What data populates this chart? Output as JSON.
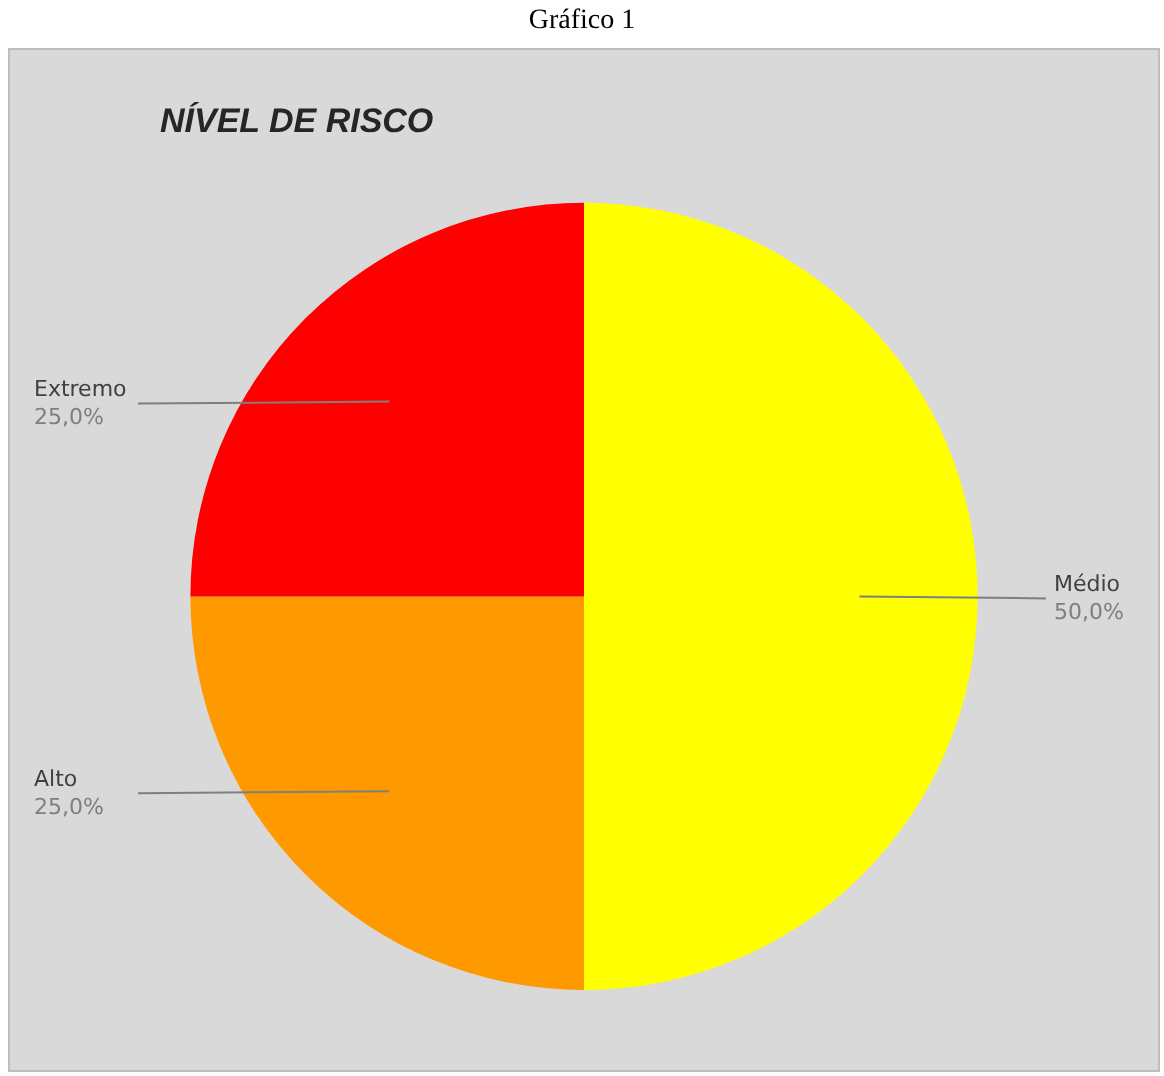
{
  "chart_data": {
    "type": "pie",
    "title": "NÍVEL DE RISCO",
    "annotations": [
      "Gráfico 1"
    ],
    "categories": [
      "Médio",
      "Alto",
      "Extremo"
    ],
    "values": [
      50,
      25,
      25
    ],
    "colors": [
      "#ffff00",
      "#ff9900",
      "#ff0000"
    ],
    "value_labels": [
      "50,0%",
      "25,0%",
      "25,0%"
    ],
    "legend": false
  }
}
